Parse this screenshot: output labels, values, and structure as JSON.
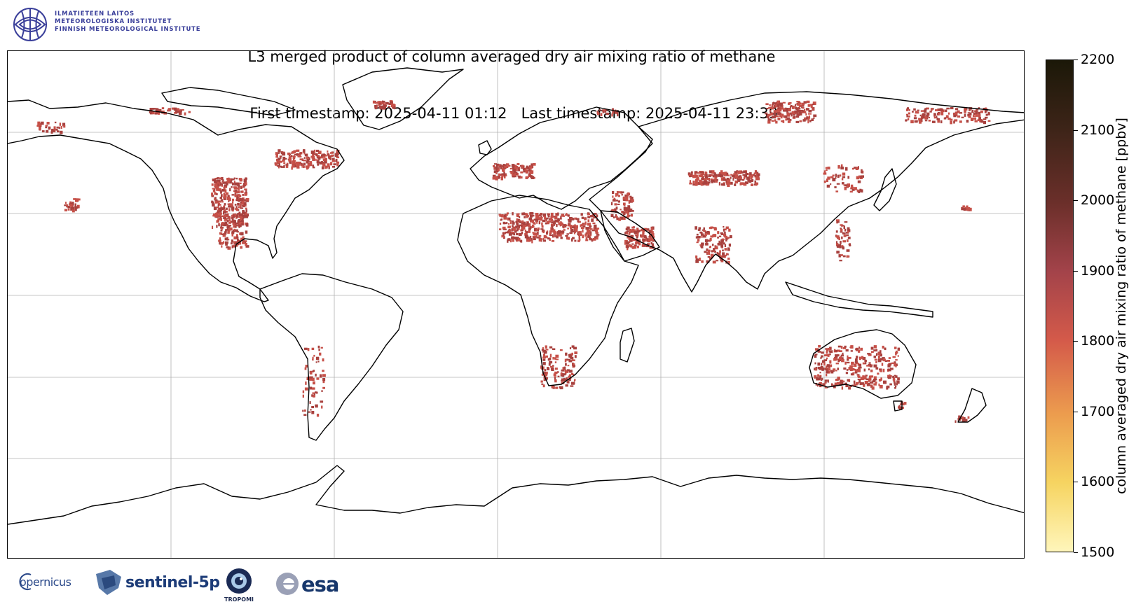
{
  "header": {
    "logo_lines": [
      "ILMATIETEEN LAITOS",
      "METEOROLOGISKA INSTITUTET",
      "FINNISH METEOROLOGICAL INSTITUTE"
    ],
    "title_line1": "L3 merged product of column averaged dry air mixing ratio of methane",
    "title_line2": " First timestamp: 2025-04-11 01:12   Last timestamp: 2025-04-11 23:39"
  },
  "map": {
    "projection": "plate-carree",
    "gridlines": true,
    "land_outline_color": "#000000",
    "data_color": "#c65048",
    "data_color_dark": "#a8413e"
  },
  "colorbar": {
    "label": "column averaged dry air mixing ratio of methane [ppbv]",
    "min": 1500,
    "max": 2200,
    "ticks": [
      "1500",
      "1600",
      "1700",
      "1800",
      "1900",
      "2000",
      "2100",
      "2200"
    ],
    "colormap": [
      "#fff6bb",
      "#f6d461",
      "#ec9c4e",
      "#d45a4a",
      "#a3434a",
      "#6b2f2a",
      "#3d2418",
      "#1b1808"
    ]
  },
  "footer": {
    "copernicus": "opernicus",
    "sentinel": "sentinel-5p",
    "tropomi": "TROPOMI",
    "esa": "esa"
  }
}
